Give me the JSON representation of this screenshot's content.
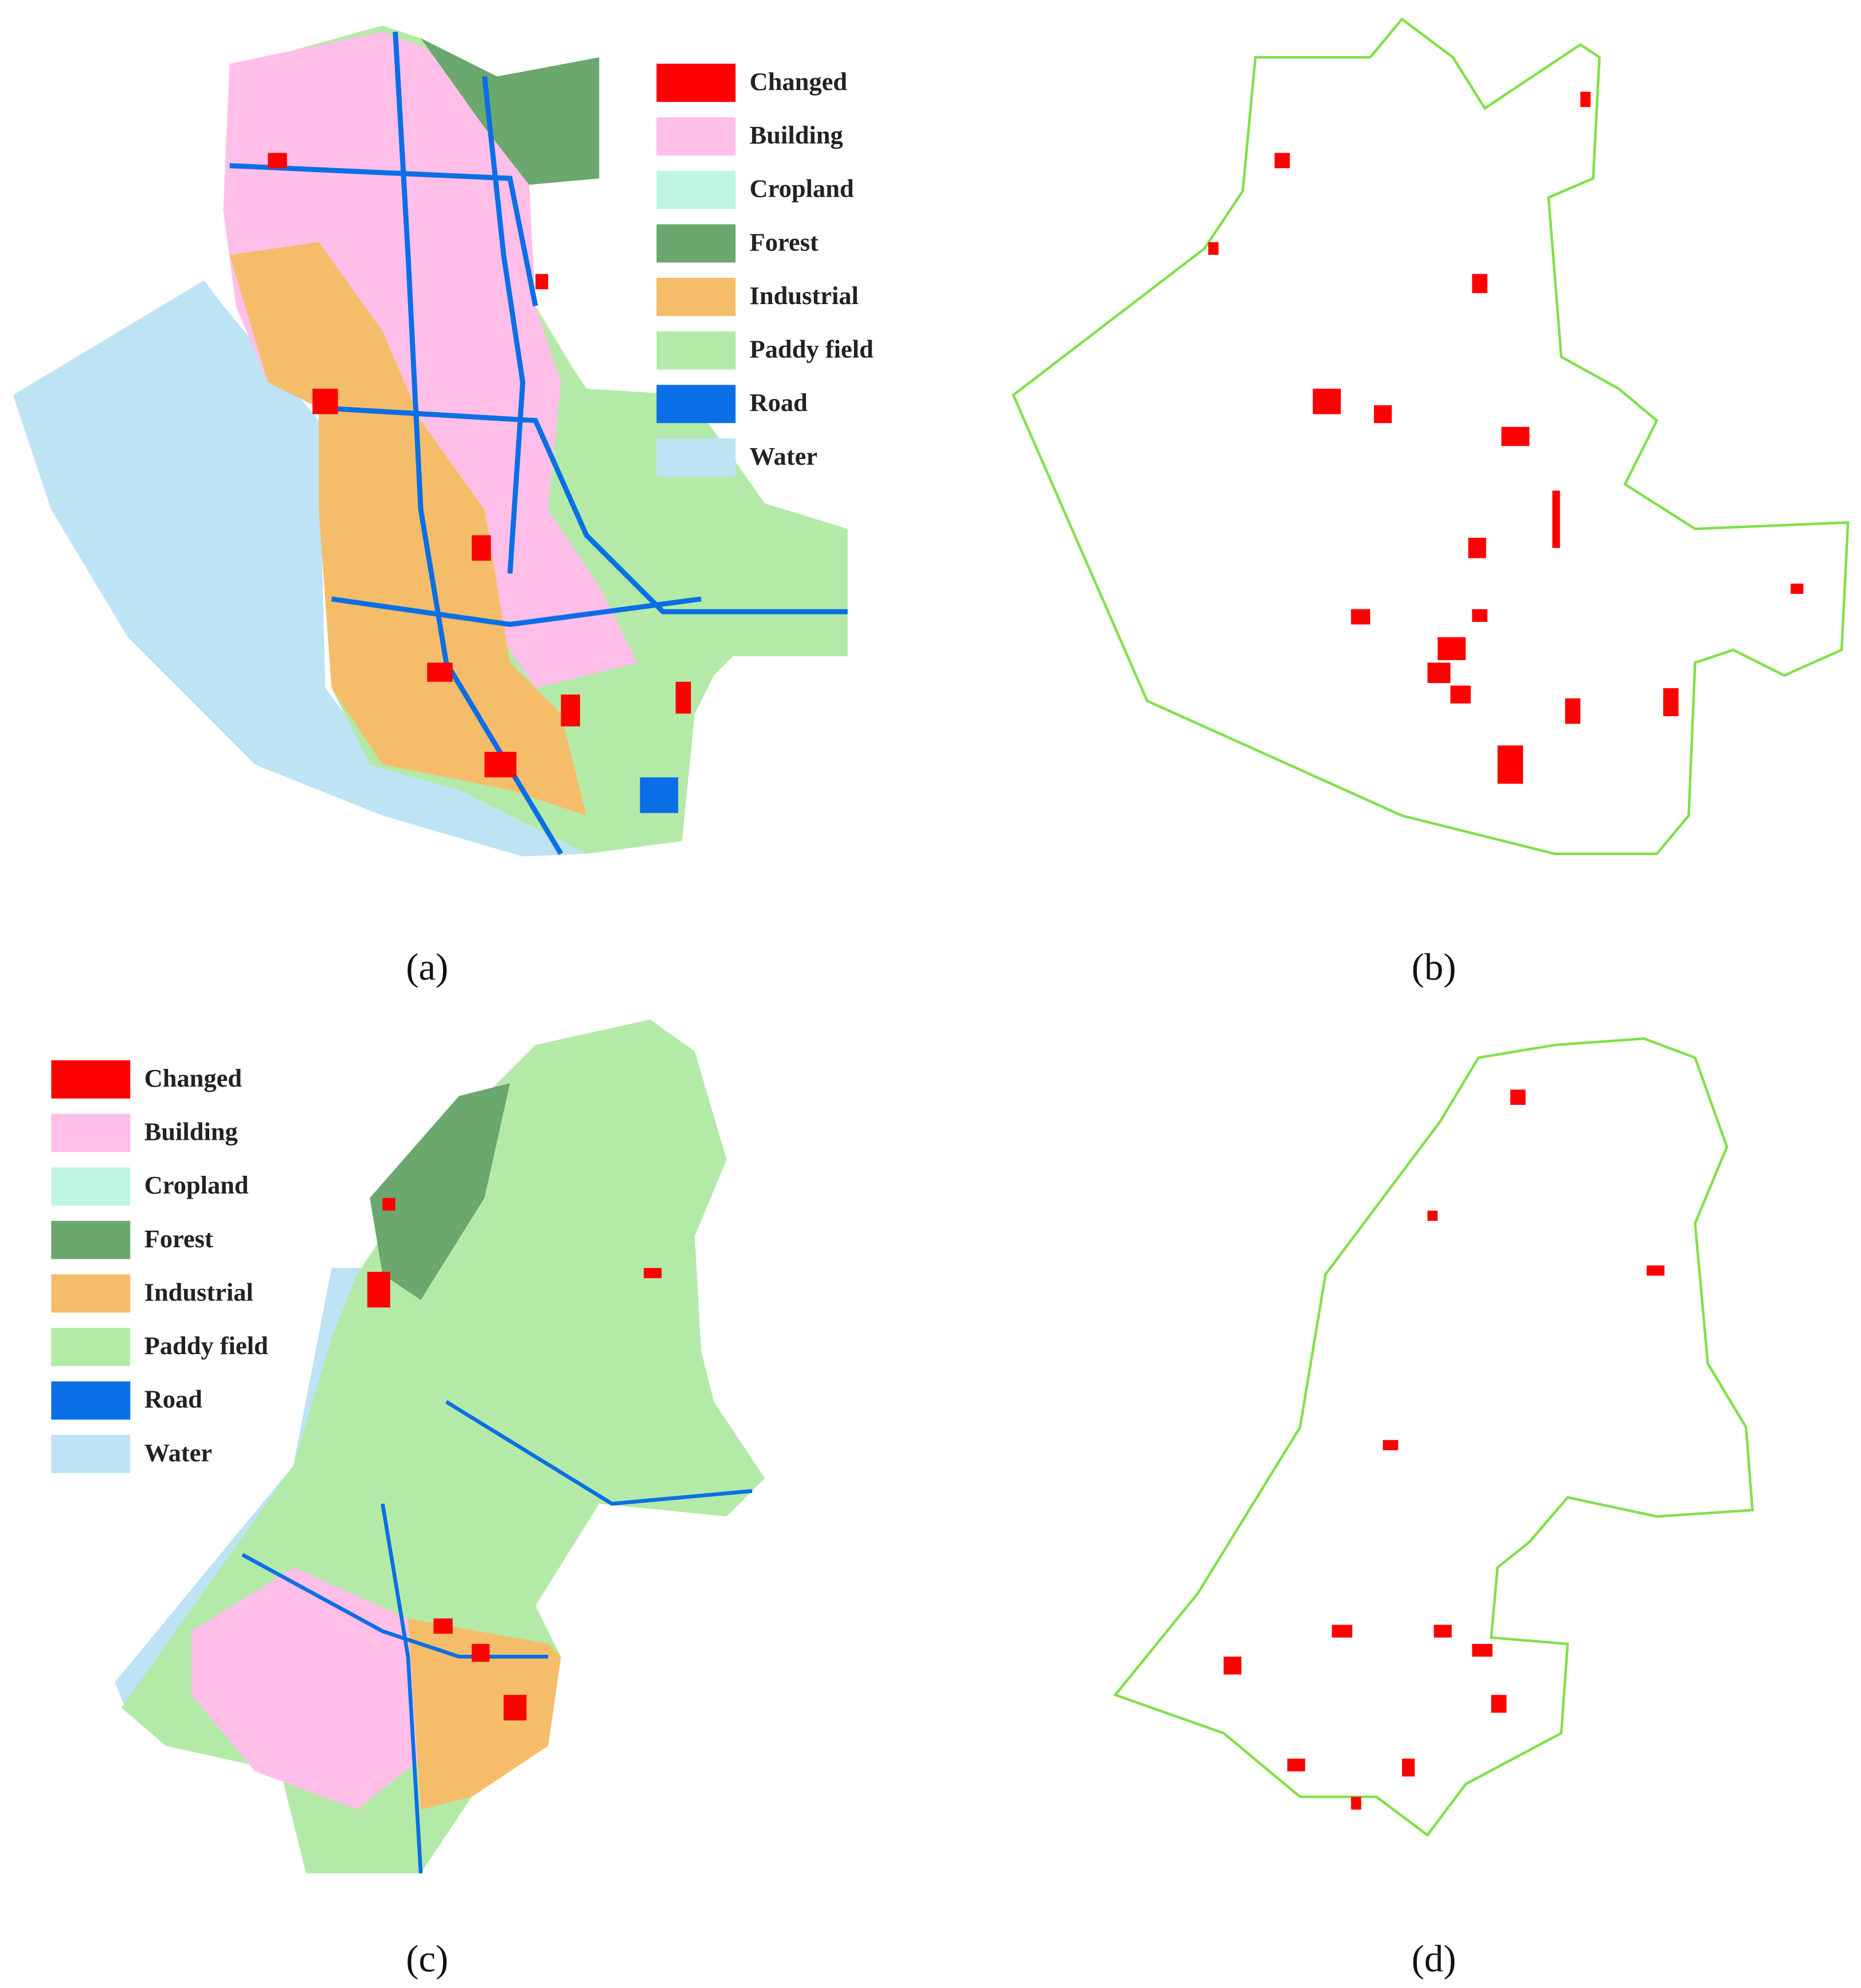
{
  "panels": [
    {
      "label": "(a)",
      "legend": [
        {
          "name": "Changed",
          "color": "#ff0000"
        },
        {
          "name": "Building",
          "color": "#ffbfe8"
        },
        {
          "name": "Cropland",
          "color": "#bff5e4"
        },
        {
          "name": "Forest",
          "color": "#6aa86d"
        },
        {
          "name": "Industrial",
          "color": "#f5bd69"
        },
        {
          "name": "Paddy field",
          "color": "#b3eaa8"
        },
        {
          "name": "Road",
          "color": "#0a6fe6"
        },
        {
          "name": "Water",
          "color": "#bde3f5"
        }
      ]
    },
    {
      "label": "(b)"
    },
    {
      "label": "(c)",
      "legend": [
        {
          "name": "Changed",
          "color": "#ff0000"
        },
        {
          "name": "Building",
          "color": "#ffbfe8"
        },
        {
          "name": "Cropland",
          "color": "#bff5e4"
        },
        {
          "name": "Forest",
          "color": "#6aa86d"
        },
        {
          "name": "Industrial",
          "color": "#f5bd69"
        },
        {
          "name": "Paddy field",
          "color": "#b3eaa8"
        },
        {
          "name": "Road",
          "color": "#0a6fe6"
        },
        {
          "name": "Water",
          "color": "#bde3f5"
        }
      ]
    },
    {
      "label": "(d)"
    }
  ]
}
